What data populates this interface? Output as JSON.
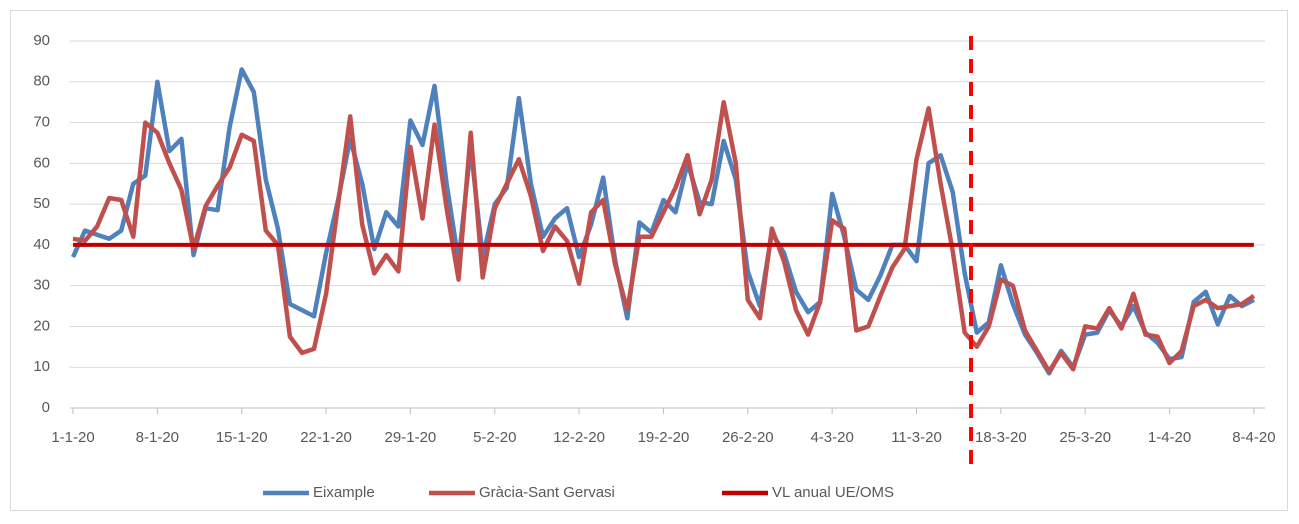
{
  "chart_data": {
    "type": "line",
    "categories": [
      "1-1-20",
      null,
      null,
      null,
      null,
      null,
      null,
      "8-1-20",
      null,
      null,
      null,
      null,
      null,
      null,
      "15-1-20",
      null,
      null,
      null,
      null,
      null,
      null,
      "22-1-20",
      null,
      null,
      null,
      null,
      null,
      null,
      "29-1-20",
      null,
      null,
      null,
      null,
      null,
      null,
      "5-2-20",
      null,
      null,
      null,
      null,
      null,
      null,
      "12-2-20",
      null,
      null,
      null,
      null,
      null,
      null,
      "19-2-20",
      null,
      null,
      null,
      null,
      null,
      null,
      "26-2-20",
      null,
      null,
      null,
      null,
      null,
      null,
      "4-3-20",
      null,
      null,
      null,
      null,
      null,
      null,
      "11-3-20",
      null,
      null,
      null,
      null,
      null,
      null,
      "18-3-20",
      null,
      null,
      null,
      null,
      null,
      null,
      "25-3-20",
      null,
      null,
      null,
      null,
      null,
      null,
      "1-4-20",
      null,
      null,
      null,
      null,
      null,
      null,
      "8-4-20"
    ],
    "series": [
      {
        "name": "Eixample",
        "color": "#4f81bd",
        "values": [
          37,
          43.5,
          42.5,
          41.5,
          43.5,
          55,
          57,
          80,
          63,
          66,
          37.5,
          49,
          48.5,
          69,
          83,
          77.5,
          56,
          44,
          25.5,
          24,
          22.5,
          38,
          51,
          66,
          55,
          39,
          48,
          44.5,
          70.5,
          64.5,
          79,
          55,
          36,
          64,
          37,
          50,
          54,
          76,
          55,
          42,
          46.5,
          49,
          37,
          45,
          56.5,
          36,
          22,
          45.5,
          43,
          51,
          48,
          60,
          50.5,
          50,
          65.5,
          56,
          33.5,
          25,
          43,
          38,
          28.5,
          23.5,
          26,
          52.5,
          42,
          29,
          26.5,
          32.5,
          40,
          40,
          36,
          60,
          62,
          53,
          33,
          18.5,
          21,
          35,
          25.5,
          18,
          13.5,
          8.5,
          14,
          10,
          18,
          18.5,
          24,
          20,
          25,
          18.5,
          16,
          12,
          12.5,
          26,
          28.5,
          20.5,
          27.5,
          25,
          26.5
        ]
      },
      {
        "name": "Gràcia-Sant Gervasi",
        "color": "#c0504d",
        "values": [
          41.5,
          41,
          44.5,
          51.5,
          51,
          42,
          70,
          67.5,
          60,
          53.5,
          39,
          49.5,
          54.5,
          59,
          67,
          65.5,
          43.5,
          40,
          17.5,
          13.5,
          14.5,
          28,
          50,
          71.5,
          45,
          33,
          37.5,
          33.5,
          64,
          46.5,
          69.5,
          49,
          31.5,
          67.5,
          32,
          49,
          55,
          61,
          52,
          38.5,
          44.5,
          41,
          30.5,
          48,
          51,
          35,
          24,
          42,
          42,
          48,
          54,
          62,
          47.5,
          56,
          75,
          60,
          26.5,
          22,
          44,
          36,
          24,
          18,
          26,
          46,
          44,
          19,
          20,
          27.5,
          34.5,
          39,
          61,
          73.5,
          55,
          38.5,
          18.5,
          15,
          20,
          31.5,
          30,
          19,
          14,
          9,
          13.5,
          9.5,
          20,
          19.5,
          24.5,
          19.5,
          28,
          18,
          17.5,
          11,
          14,
          25,
          26.5,
          24.5,
          25,
          25.5,
          27.5
        ]
      }
    ],
    "reference": {
      "name": "VL anual UE/OMS",
      "color": "#c00000",
      "value": 40
    },
    "ylim": [
      0,
      90
    ],
    "yticks": [
      0,
      10,
      20,
      30,
      40,
      50,
      60,
      70,
      80,
      90
    ],
    "grid": true
  }
}
